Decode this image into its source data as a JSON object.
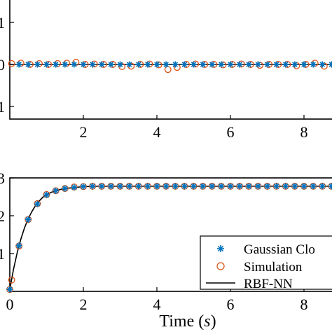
{
  "colors": {
    "gaussian": "#0072bd",
    "simulation": "#d95319",
    "rbf": "#000000",
    "axes": "#000000",
    "background": "#ffffff"
  },
  "chart_data": [
    {
      "type": "scatter",
      "title": "",
      "xlabel": "",
      "ylabel": "",
      "xlim": [
        0,
        8.8
      ],
      "ylim": [
        -1,
        1
      ],
      "x_ticks": [
        "2",
        "4",
        "6",
        "8"
      ],
      "y_ticks": [
        "1",
        "0",
        "1"
      ],
      "grid": false,
      "series": [
        {
          "kind": "asterisk",
          "x": [
            0.25,
            0.5,
            0.75,
            1.0,
            1.25,
            1.5,
            1.75,
            2.0,
            2.25,
            2.5,
            2.75,
            3.0,
            3.25,
            3.5,
            3.75,
            4.0,
            4.25,
            4.5,
            4.75,
            5.0,
            5.25,
            5.5,
            5.75,
            6.0,
            6.25,
            6.5,
            6.75,
            7.0,
            7.25,
            7.5,
            7.75,
            8.0,
            8.25,
            8.5,
            8.75
          ],
          "y": [
            0,
            0,
            0,
            0,
            0,
            0,
            0,
            0,
            0,
            0,
            0,
            0,
            0,
            0,
            0,
            0,
            0,
            0,
            0,
            0,
            0,
            0,
            0,
            0,
            0,
            0,
            0,
            0,
            0,
            0,
            0,
            0,
            0,
            0,
            0
          ]
        },
        {
          "kind": "circle",
          "x": [
            0.05,
            0.3,
            0.55,
            0.8,
            1.05,
            1.3,
            1.55,
            1.8,
            2.05,
            2.3,
            2.55,
            2.8,
            3.05,
            3.3,
            3.55,
            3.8,
            4.05,
            4.3,
            4.55,
            4.8,
            5.05,
            5.3,
            5.55,
            5.8,
            6.05,
            6.3,
            6.55,
            6.8,
            7.05,
            7.3,
            7.55,
            7.8,
            8.05,
            8.3,
            8.55,
            8.8
          ],
          "y": [
            0.02,
            0.03,
            0.0,
            0.02,
            0.0,
            0.02,
            0.03,
            0.05,
            0.0,
            0.01,
            0.0,
            0.0,
            -0.05,
            -0.04,
            0.0,
            0.01,
            -0.01,
            -0.12,
            -0.07,
            0.0,
            0.01,
            0.0,
            0.0,
            -0.01,
            0.0,
            0.01,
            0.0,
            -0.02,
            0.0,
            0.0,
            0.0,
            -0.03,
            0.0,
            0.03,
            -0.04,
            0.0
          ]
        },
        {
          "kind": "line",
          "x": [
            0,
            8.8
          ],
          "y": [
            0,
            0
          ]
        }
      ]
    },
    {
      "type": "line",
      "title": "",
      "xlabel": "Time (s)",
      "ylabel": "",
      "xlim": [
        0,
        8.8
      ],
      "ylim": [
        0,
        3
      ],
      "x_ticks": [
        "0",
        "2",
        "4",
        "6",
        "8"
      ],
      "y_ticks": [
        "3",
        "2",
        "1"
      ],
      "grid": false,
      "legend_position": "bottom-right",
      "legend": {
        "gaussian": "Gaussian Clo",
        "simulation": "Simulation",
        "rbf": "RBF-NN"
      },
      "series": [
        {
          "name": "Gaussian Clo",
          "kind": "asterisk",
          "x": [
            0.0,
            0.25,
            0.5,
            0.75,
            1.0,
            1.25,
            1.5,
            1.75,
            2.0,
            2.25,
            2.5,
            2.75,
            3.0,
            3.25,
            3.5,
            3.75,
            4.0,
            4.25,
            4.5,
            4.75,
            5.0,
            5.25,
            5.5,
            5.75,
            6.0,
            6.25,
            6.5,
            6.75,
            7.0,
            7.25,
            7.5,
            7.75,
            8.0,
            8.25,
            8.5,
            8.75
          ],
          "y": [
            0.05,
            1.21,
            1.9,
            2.31,
            2.55,
            2.66,
            2.72,
            2.75,
            2.77,
            2.78,
            2.78,
            2.78,
            2.78,
            2.78,
            2.78,
            2.78,
            2.78,
            2.78,
            2.78,
            2.78,
            2.78,
            2.78,
            2.78,
            2.78,
            2.78,
            2.78,
            2.78,
            2.78,
            2.78,
            2.78,
            2.78,
            2.78,
            2.78,
            2.78,
            2.78,
            2.78
          ]
        },
        {
          "name": "Simulation",
          "kind": "circle",
          "x": [
            0.0,
            0.05,
            0.25,
            0.5,
            0.75,
            1.0,
            1.25,
            1.5,
            1.75,
            2.0,
            2.25,
            2.5,
            2.75,
            3.0,
            3.25,
            3.5,
            3.75,
            4.0,
            4.25,
            4.5,
            4.75,
            5.0,
            5.25,
            5.5,
            5.75,
            6.0,
            6.25,
            6.5,
            6.75,
            7.0,
            7.25,
            7.5,
            7.75,
            8.0,
            8.25,
            8.5,
            8.75
          ],
          "y": [
            0.05,
            0.3,
            1.2,
            1.9,
            2.32,
            2.56,
            2.66,
            2.72,
            2.76,
            2.77,
            2.78,
            2.78,
            2.78,
            2.78,
            2.78,
            2.78,
            2.78,
            2.78,
            2.78,
            2.78,
            2.78,
            2.78,
            2.78,
            2.78,
            2.78,
            2.78,
            2.78,
            2.78,
            2.78,
            2.78,
            2.78,
            2.78,
            2.78,
            2.78,
            2.78,
            2.78,
            2.78
          ]
        },
        {
          "name": "RBF-NN",
          "kind": "line",
          "x": [
            0.0,
            0.1,
            0.2,
            0.3,
            0.4,
            0.5,
            0.6,
            0.7,
            0.8,
            0.9,
            1.0,
            1.2,
            1.4,
            1.6,
            1.8,
            2.0,
            2.4,
            3.0,
            4.0,
            5.0,
            6.0,
            7.0,
            8.0,
            8.8
          ],
          "y": [
            0.05,
            0.58,
            1.02,
            1.38,
            1.68,
            1.92,
            2.11,
            2.27,
            2.39,
            2.49,
            2.56,
            2.65,
            2.7,
            2.73,
            2.75,
            2.77,
            2.78,
            2.78,
            2.78,
            2.78,
            2.78,
            2.78,
            2.78,
            2.78
          ]
        }
      ]
    }
  ]
}
